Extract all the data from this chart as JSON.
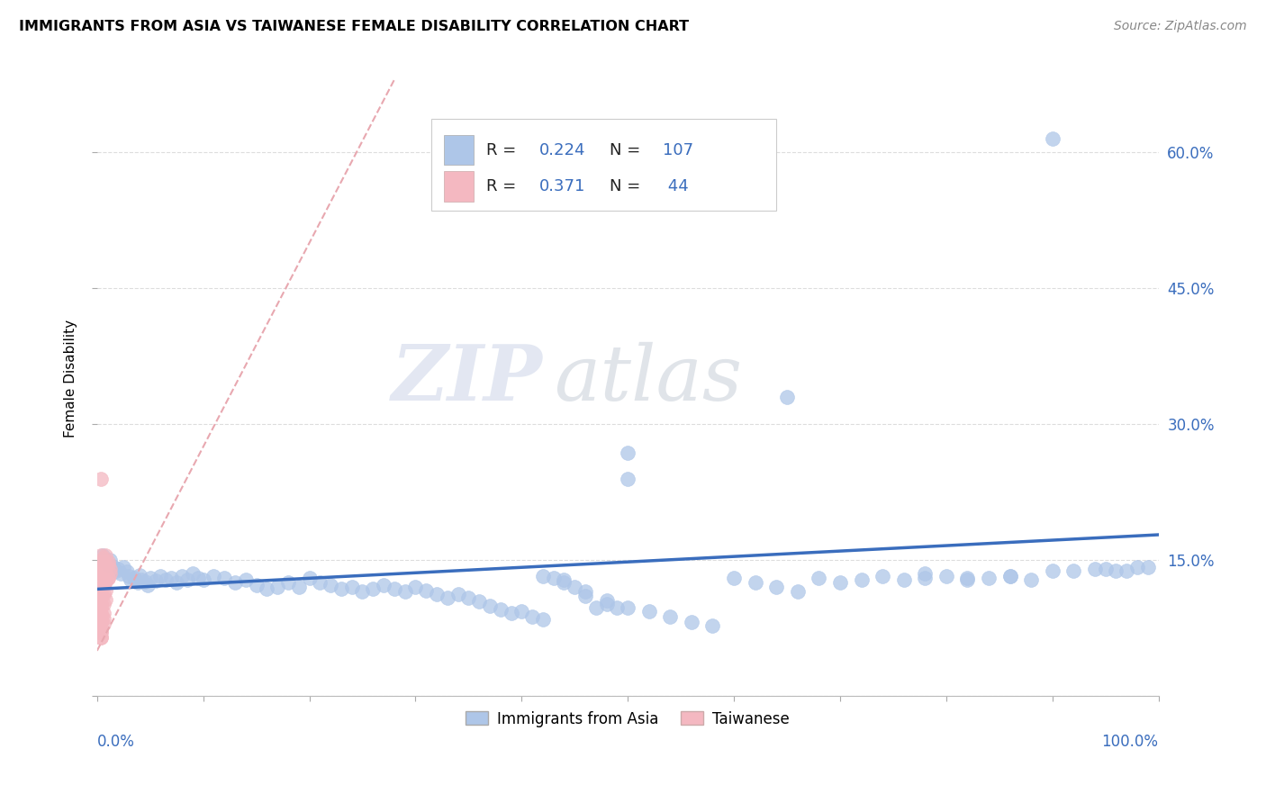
{
  "title": "IMMIGRANTS FROM ASIA VS TAIWANESE FEMALE DISABILITY CORRELATION CHART",
  "source": "Source: ZipAtlas.com",
  "ylabel": "Female Disability",
  "xlim": [
    0.0,
    1.0
  ],
  "ylim": [
    0.0,
    0.7
  ],
  "x_ticks": [
    0.0,
    0.1,
    0.2,
    0.3,
    0.4,
    0.5,
    0.6,
    0.7,
    0.8,
    0.9,
    1.0
  ],
  "y_ticks": [
    0.0,
    0.15,
    0.3,
    0.45,
    0.6
  ],
  "y_tick_labels": [
    "",
    "15.0%",
    "30.0%",
    "45.0%",
    "60.0%"
  ],
  "grid_color": "#dddddd",
  "watermark_zip": "ZIP",
  "watermark_atlas": "atlas",
  "blue_scatter_color": "#aec6e8",
  "pink_scatter_color": "#f4b8c1",
  "blue_line_color": "#3a6dbd",
  "pink_line_color": "#e8a8b0",
  "blue_R": "0.224",
  "blue_N": "107",
  "pink_R": "0.371",
  "pink_N": "44",
  "blue_scatter_x": [
    0.005,
    0.008,
    0.01,
    0.012,
    0.015,
    0.018,
    0.02,
    0.022,
    0.025,
    0.028,
    0.03,
    0.032,
    0.035,
    0.038,
    0.04,
    0.042,
    0.045,
    0.048,
    0.05,
    0.055,
    0.06,
    0.065,
    0.07,
    0.075,
    0.08,
    0.085,
    0.09,
    0.095,
    0.1,
    0.11,
    0.12,
    0.13,
    0.14,
    0.15,
    0.16,
    0.17,
    0.18,
    0.19,
    0.2,
    0.21,
    0.22,
    0.23,
    0.24,
    0.25,
    0.26,
    0.27,
    0.28,
    0.29,
    0.3,
    0.31,
    0.32,
    0.33,
    0.34,
    0.35,
    0.36,
    0.37,
    0.38,
    0.39,
    0.4,
    0.41,
    0.42,
    0.43,
    0.44,
    0.45,
    0.46,
    0.47,
    0.48,
    0.49,
    0.5,
    0.42,
    0.44,
    0.46,
    0.48,
    0.5,
    0.52,
    0.54,
    0.56,
    0.58,
    0.6,
    0.62,
    0.64,
    0.66,
    0.68,
    0.7,
    0.72,
    0.74,
    0.76,
    0.78,
    0.8,
    0.82,
    0.84,
    0.86,
    0.88,
    0.78,
    0.82,
    0.86,
    0.9,
    0.94,
    0.96,
    0.98,
    0.5,
    0.65,
    0.9,
    0.92,
    0.95,
    0.97,
    0.99
  ],
  "blue_scatter_y": [
    0.155,
    0.148,
    0.145,
    0.15,
    0.143,
    0.138,
    0.14,
    0.135,
    0.142,
    0.137,
    0.132,
    0.128,
    0.13,
    0.125,
    0.133,
    0.128,
    0.126,
    0.122,
    0.13,
    0.127,
    0.132,
    0.128,
    0.13,
    0.125,
    0.132,
    0.128,
    0.135,
    0.13,
    0.128,
    0.132,
    0.13,
    0.125,
    0.128,
    0.122,
    0.118,
    0.12,
    0.125,
    0.12,
    0.13,
    0.125,
    0.122,
    0.118,
    0.12,
    0.115,
    0.118,
    0.122,
    0.118,
    0.115,
    0.12,
    0.116,
    0.112,
    0.108,
    0.112,
    0.108,
    0.104,
    0.1,
    0.096,
    0.092,
    0.094,
    0.088,
    0.085,
    0.13,
    0.125,
    0.12,
    0.115,
    0.098,
    0.102,
    0.098,
    0.268,
    0.132,
    0.128,
    0.11,
    0.105,
    0.098,
    0.094,
    0.088,
    0.082,
    0.078,
    0.13,
    0.125,
    0.12,
    0.115,
    0.13,
    0.125,
    0.128,
    0.132,
    0.128,
    0.13,
    0.132,
    0.128,
    0.13,
    0.132,
    0.128,
    0.135,
    0.13,
    0.132,
    0.138,
    0.14,
    0.138,
    0.142,
    0.24,
    0.33,
    0.615,
    0.138,
    0.14,
    0.138,
    0.142
  ],
  "pink_scatter_x": [
    0.004,
    0.006,
    0.008,
    0.01,
    0.012,
    0.004,
    0.006,
    0.008,
    0.01,
    0.012,
    0.004,
    0.006,
    0.008,
    0.01,
    0.004,
    0.006,
    0.008,
    0.01,
    0.004,
    0.006,
    0.008,
    0.004,
    0.006,
    0.008,
    0.004,
    0.006,
    0.004,
    0.006,
    0.004,
    0.006,
    0.004,
    0.004,
    0.004,
    0.004,
    0.004,
    0.004,
    0.004,
    0.004,
    0.004,
    0.004,
    0.004,
    0.004,
    0.004,
    0.004
  ],
  "pink_scatter_y": [
    0.148,
    0.152,
    0.155,
    0.145,
    0.14,
    0.138,
    0.142,
    0.145,
    0.148,
    0.135,
    0.128,
    0.132,
    0.136,
    0.13,
    0.118,
    0.122,
    0.126,
    0.13,
    0.108,
    0.112,
    0.116,
    0.098,
    0.102,
    0.106,
    0.088,
    0.092,
    0.082,
    0.086,
    0.076,
    0.08,
    0.07,
    0.065,
    0.24,
    0.155,
    0.148,
    0.142,
    0.136,
    0.122,
    0.112,
    0.102,
    0.092,
    0.082,
    0.072,
    0.065
  ],
  "blue_line_x0": 0.0,
  "blue_line_y0": 0.118,
  "blue_line_x1": 1.0,
  "blue_line_y1": 0.178,
  "pink_line_x0": 0.0,
  "pink_line_y0": 0.05,
  "pink_line_x1": 0.28,
  "pink_line_y1": 0.68
}
